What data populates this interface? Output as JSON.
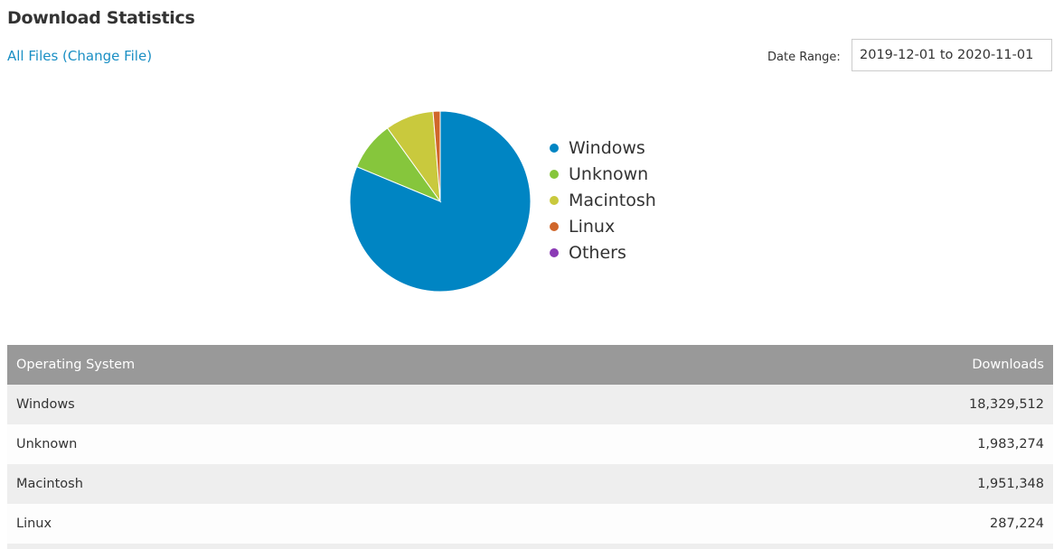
{
  "page": {
    "title": "Download Statistics",
    "file_link": "All Files (Change File)",
    "date_range_label": "Date Range:",
    "date_range_value": "2019-12-01 to 2020-11-01"
  },
  "chart_data": {
    "type": "pie",
    "categories": [
      "Windows",
      "Unknown",
      "Macintosh",
      "Linux",
      "Others"
    ],
    "values": [
      18329512,
      1983274,
      1951348,
      287224,
      0
    ],
    "colors": [
      "#0085c3",
      "#86c63c",
      "#c9c93d",
      "#d0662a",
      "#8b3ab5"
    ],
    "legend_position": "right"
  },
  "table": {
    "headers": [
      "Operating System",
      "Downloads"
    ],
    "rows": [
      {
        "os": "Windows",
        "downloads": "18,329,512"
      },
      {
        "os": "Unknown",
        "downloads": "1,983,274"
      },
      {
        "os": "Macintosh",
        "downloads": "1,951,348"
      },
      {
        "os": "Linux",
        "downloads": "287,224"
      }
    ]
  }
}
